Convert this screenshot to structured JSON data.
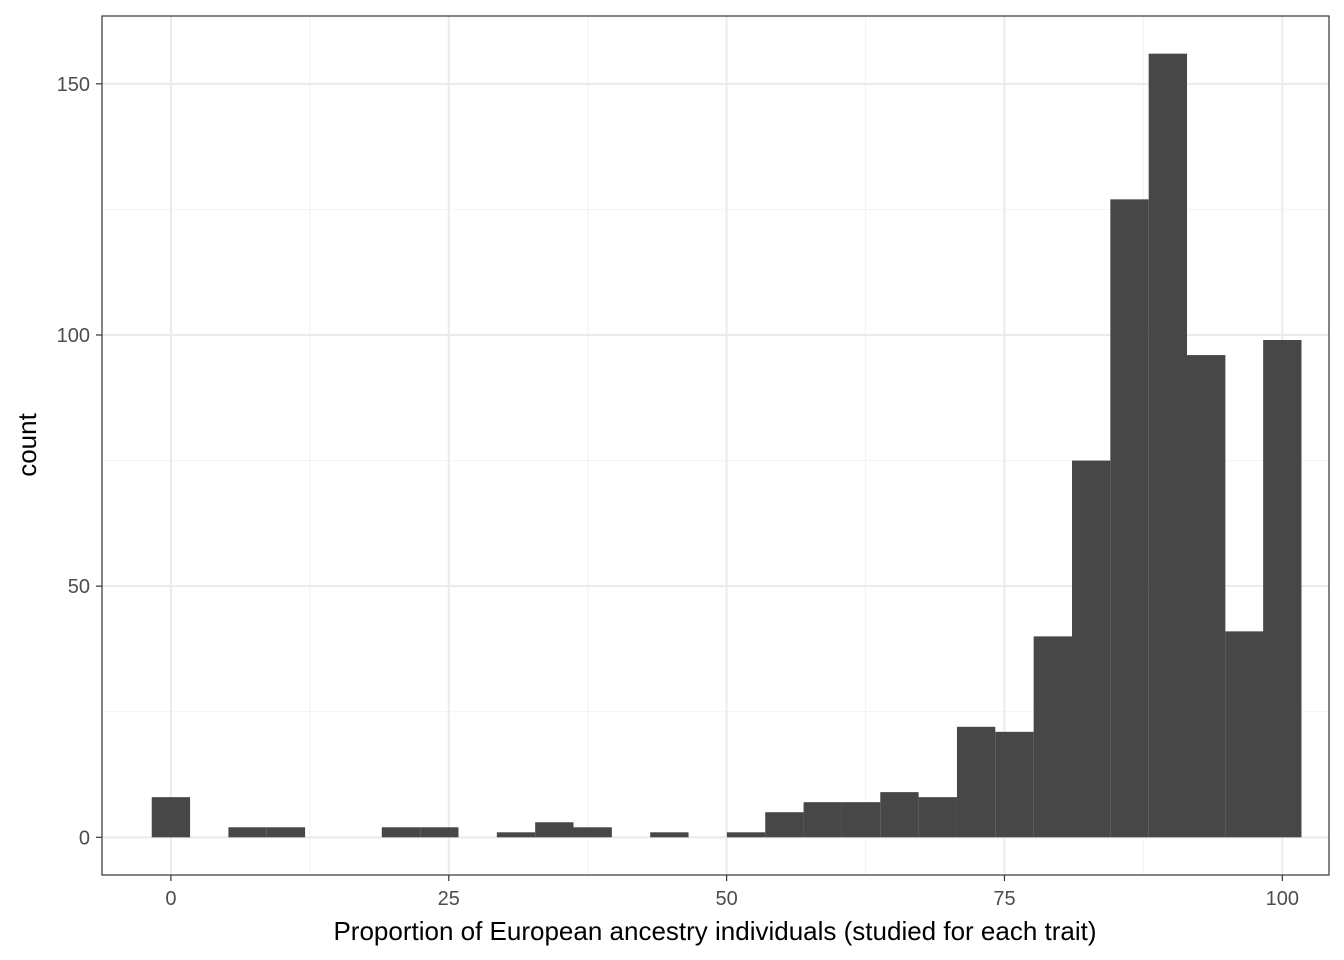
{
  "chart_data": {
    "type": "bar",
    "subtype": "histogram",
    "title": "",
    "xlabel": "Proportion of European ancestry individuals (studied for each trait)",
    "ylabel": "count",
    "xlim": [
      -6.2,
      104.2
    ],
    "ylim": [
      -7.5,
      163.5
    ],
    "bin_width": 3.45,
    "x_ticks": [
      0,
      25,
      50,
      75,
      100
    ],
    "x_tick_labels": [
      "0",
      "25",
      "50",
      "75",
      "100"
    ],
    "y_ticks": [
      0,
      50,
      100,
      150
    ],
    "y_tick_labels": [
      "0",
      "50",
      "100",
      "150"
    ],
    "grid": true,
    "bar_color": "#474747",
    "panel_border_color": "#333333",
    "grid_major_color": "#ebebeb",
    "grid_minor_color": "#f2f2f2",
    "bins": [
      {
        "x_center": 0.0,
        "count": 8
      },
      {
        "x_center": 3.45,
        "count": 0
      },
      {
        "x_center": 6.9,
        "count": 2
      },
      {
        "x_center": 10.35,
        "count": 2
      },
      {
        "x_center": 13.8,
        "count": 0
      },
      {
        "x_center": 17.25,
        "count": 0
      },
      {
        "x_center": 20.7,
        "count": 2
      },
      {
        "x_center": 24.15,
        "count": 2
      },
      {
        "x_center": 27.6,
        "count": 0
      },
      {
        "x_center": 31.05,
        "count": 1
      },
      {
        "x_center": 34.5,
        "count": 3
      },
      {
        "x_center": 37.95,
        "count": 2
      },
      {
        "x_center": 41.4,
        "count": 0
      },
      {
        "x_center": 44.85,
        "count": 1
      },
      {
        "x_center": 48.3,
        "count": 0
      },
      {
        "x_center": 51.75,
        "count": 1
      },
      {
        "x_center": 55.2,
        "count": 5
      },
      {
        "x_center": 58.65,
        "count": 7
      },
      {
        "x_center": 62.1,
        "count": 7
      },
      {
        "x_center": 65.55,
        "count": 9
      },
      {
        "x_center": 69.0,
        "count": 8
      },
      {
        "x_center": 72.45,
        "count": 22
      },
      {
        "x_center": 75.9,
        "count": 21
      },
      {
        "x_center": 79.35,
        "count": 40
      },
      {
        "x_center": 82.8,
        "count": 75
      },
      {
        "x_center": 86.25,
        "count": 127
      },
      {
        "x_center": 89.7,
        "count": 156
      },
      {
        "x_center": 93.15,
        "count": 96
      },
      {
        "x_center": 96.6,
        "count": 41
      },
      {
        "x_center": 100.0,
        "count": 99
      }
    ]
  }
}
